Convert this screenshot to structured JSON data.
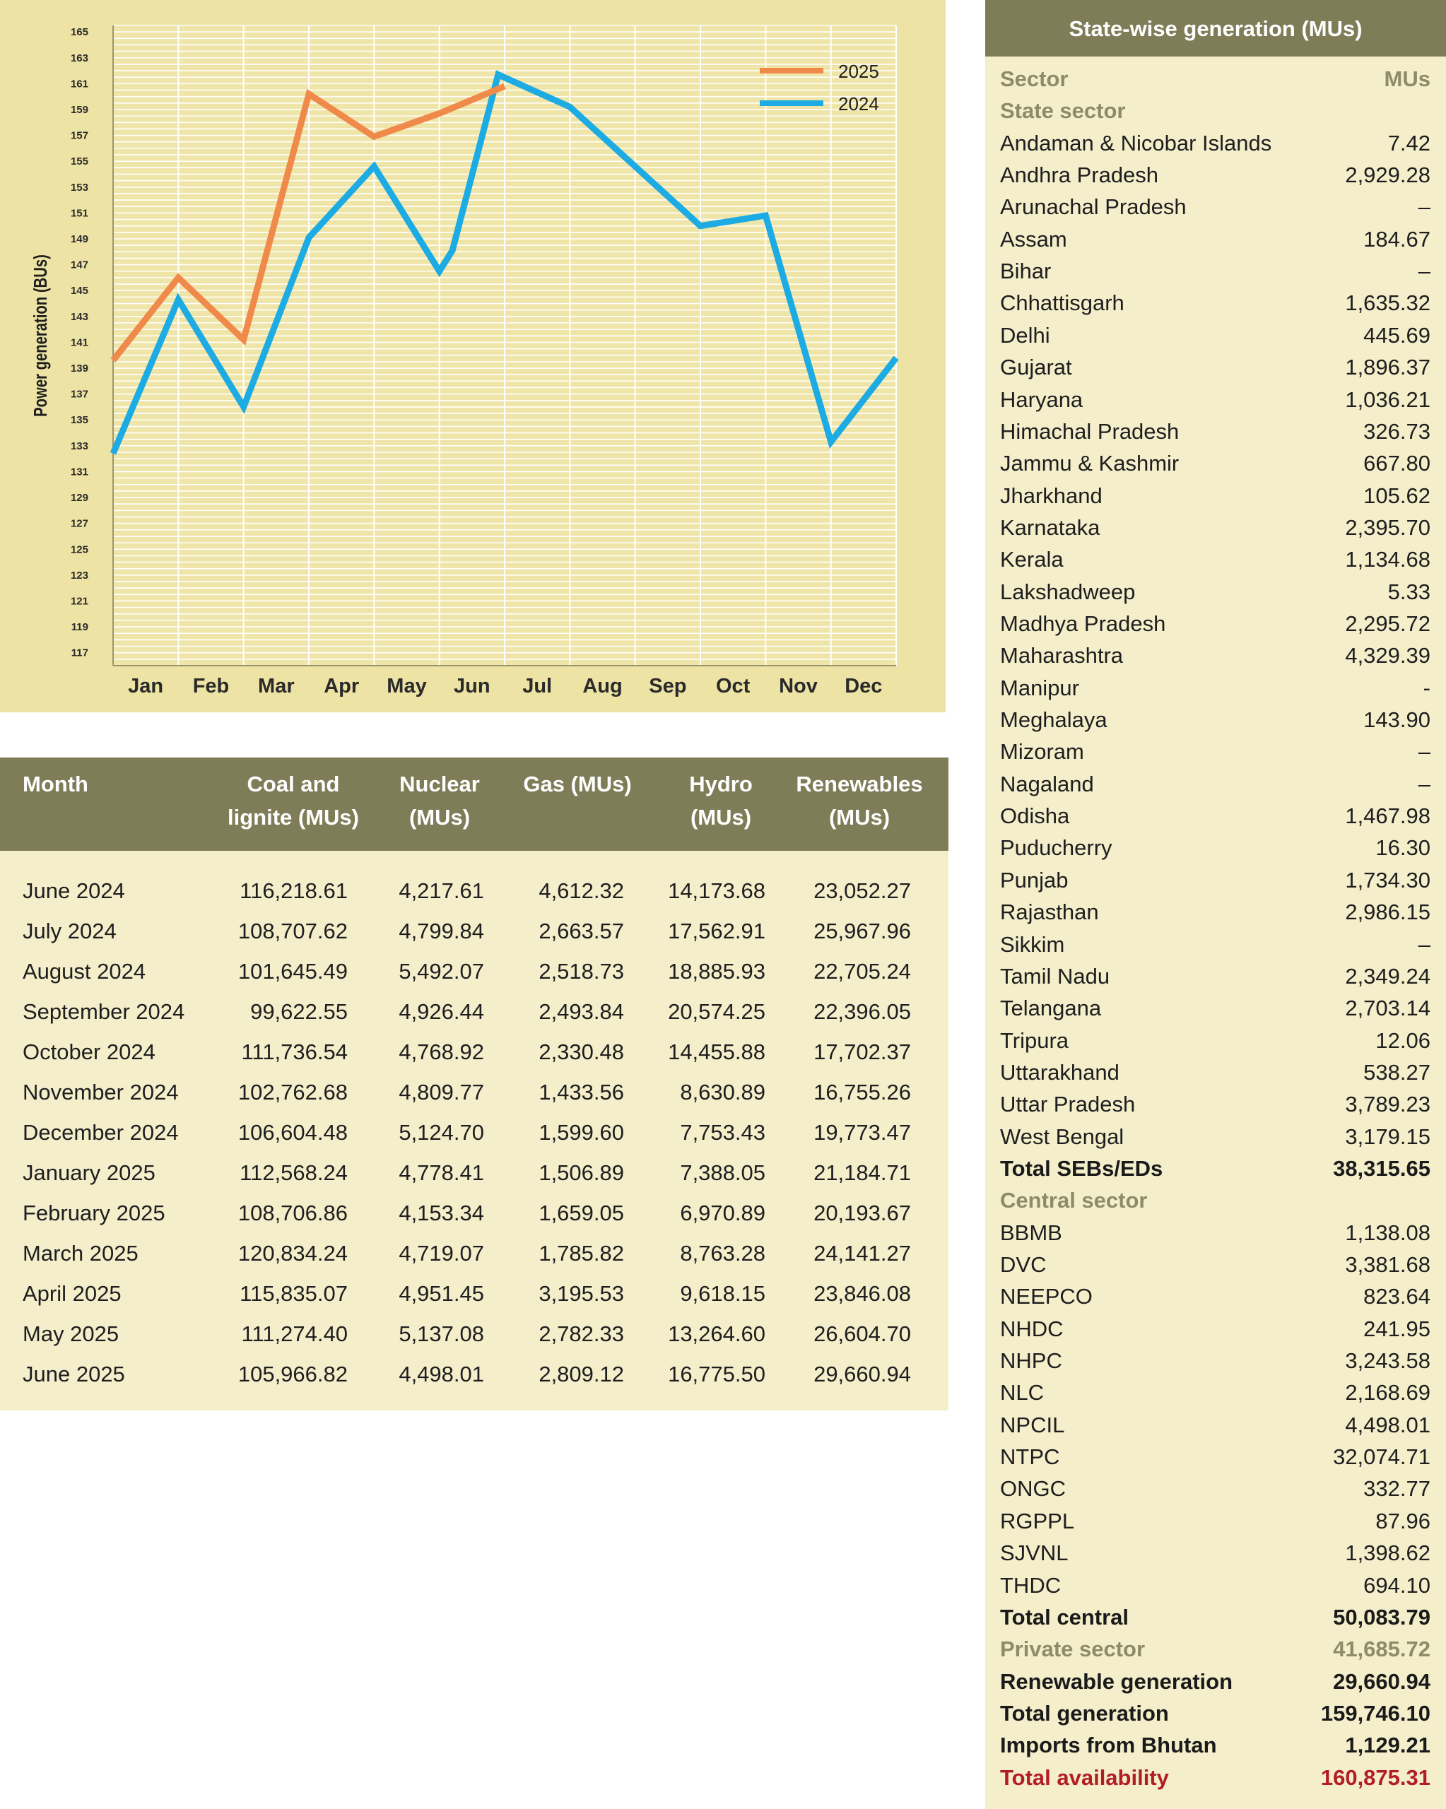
{
  "chart_data": {
    "type": "line",
    "title": "",
    "xlabel": "",
    "ylabel": "Power generation (BUs)",
    "categories": [
      "Jan",
      "Feb",
      "Mar",
      "Apr",
      "May",
      "Jun",
      "Jul",
      "Aug",
      "Sep",
      "Oct",
      "Nov",
      "Dec"
    ],
    "yticks": [
      165,
      163,
      161,
      159,
      157,
      155,
      153,
      151,
      149,
      147,
      145,
      143,
      141,
      139,
      137,
      135,
      133,
      131,
      129,
      127,
      125,
      123,
      121,
      119,
      117
    ],
    "ylim": [
      116,
      165.5
    ],
    "grid": true,
    "legend_position": "top-right",
    "series": [
      {
        "name": "2025",
        "color": "#f08a4b",
        "points": [
          [
            1,
            139.6
          ],
          [
            2,
            146.0
          ],
          [
            3,
            141.2
          ],
          [
            4,
            160.2
          ],
          [
            5,
            156.9
          ],
          [
            6,
            158.7
          ],
          [
            7,
            160.8
          ]
        ]
      },
      {
        "name": "2024",
        "color": "#1cabe2",
        "points": [
          [
            1,
            132.4
          ],
          [
            2,
            144.3
          ],
          [
            3,
            136.0
          ],
          [
            4,
            149.1
          ],
          [
            5,
            154.6
          ],
          [
            6,
            146.5
          ],
          [
            6.2,
            148.1
          ],
          [
            6.9,
            161.7
          ],
          [
            8,
            159.2
          ],
          [
            10,
            150.0
          ],
          [
            11,
            150.8
          ],
          [
            12,
            133.3
          ],
          [
            13,
            139.8
          ]
        ]
      }
    ]
  },
  "monthly_table": {
    "headers": [
      [
        "Month",
        ""
      ],
      [
        "Coal and",
        "lignite (MUs)"
      ],
      [
        "Nuclear",
        "(MUs)"
      ],
      [
        "Gas (MUs)",
        ""
      ],
      [
        "Hydro",
        "(MUs)"
      ],
      [
        "Renewables",
        "(MUs)"
      ]
    ],
    "rows": [
      [
        "June 2024",
        "116,218.61",
        "4,217.61",
        "4,612.32",
        "14,173.68",
        "23,052.27"
      ],
      [
        "July 2024",
        "108,707.62",
        "4,799.84",
        "2,663.57",
        "17,562.91",
        "25,967.96"
      ],
      [
        "August 2024",
        "101,645.49",
        "5,492.07",
        "2,518.73",
        "18,885.93",
        "22,705.24"
      ],
      [
        "September 2024",
        "99,622.55",
        "4,926.44",
        "2,493.84",
        "20,574.25",
        "22,396.05"
      ],
      [
        "October 2024",
        "111,736.54",
        "4,768.92",
        "2,330.48",
        "14,455.88",
        "17,702.37"
      ],
      [
        "November 2024",
        "102,762.68",
        "4,809.77",
        "1,433.56",
        "8,630.89",
        "16,755.26"
      ],
      [
        "December 2024",
        "106,604.48",
        "5,124.70",
        "1,599.60",
        "7,753.43",
        "19,773.47"
      ],
      [
        "January 2025",
        "112,568.24",
        "4,778.41",
        "1,506.89",
        "7,388.05",
        "21,184.71"
      ],
      [
        "February 2025",
        "108,706.86",
        "4,153.34",
        "1,659.05",
        "6,970.89",
        "20,193.67"
      ],
      [
        "March 2025",
        "120,834.24",
        "4,719.07",
        "1,785.82",
        "8,763.28",
        "24,141.27"
      ],
      [
        "April 2025",
        "115,835.07",
        "4,951.45",
        "3,195.53",
        "9,618.15",
        "23,846.08"
      ],
      [
        "May 2025",
        "111,274.40",
        "5,137.08",
        "2,782.33",
        "13,264.60",
        "26,604.70"
      ],
      [
        "June 2025",
        "105,966.82",
        "4,498.01",
        "2,809.12",
        "16,775.50",
        "29,660.94"
      ]
    ]
  },
  "state_table": {
    "title": "State-wise generation (MUs)",
    "rows": [
      {
        "name": "Sector",
        "value": "MUs",
        "style": "header"
      },
      {
        "name": "State sector",
        "value": "",
        "style": "section"
      },
      {
        "name": "Andaman & Nicobar Islands",
        "value": "7.42",
        "style": ""
      },
      {
        "name": "Andhra Pradesh",
        "value": "2,929.28",
        "style": ""
      },
      {
        "name": "Arunachal Pradesh",
        "value": "–",
        "style": ""
      },
      {
        "name": "Assam",
        "value": "184.67",
        "style": ""
      },
      {
        "name": "Bihar",
        "value": "–",
        "style": ""
      },
      {
        "name": "Chhattisgarh",
        "value": "1,635.32",
        "style": ""
      },
      {
        "name": "Delhi",
        "value": "445.69",
        "style": ""
      },
      {
        "name": "Gujarat",
        "value": "1,896.37",
        "style": ""
      },
      {
        "name": "Haryana",
        "value": "1,036.21",
        "style": ""
      },
      {
        "name": "Himachal Pradesh",
        "value": "326.73",
        "style": ""
      },
      {
        "name": "Jammu & Kashmir",
        "value": "667.80",
        "style": ""
      },
      {
        "name": "Jharkhand",
        "value": "105.62",
        "style": ""
      },
      {
        "name": "Karnataka",
        "value": "2,395.70",
        "style": ""
      },
      {
        "name": "Kerala",
        "value": "1,134.68",
        "style": ""
      },
      {
        "name": "Lakshadweep",
        "value": "5.33",
        "style": ""
      },
      {
        "name": "Madhya Pradesh",
        "value": "2,295.72",
        "style": ""
      },
      {
        "name": "Maharashtra",
        "value": "4,329.39",
        "style": ""
      },
      {
        "name": "Manipur",
        "value": "-",
        "style": ""
      },
      {
        "name": "Meghalaya",
        "value": "143.90",
        "style": ""
      },
      {
        "name": "Mizoram",
        "value": "–",
        "style": ""
      },
      {
        "name": "Nagaland",
        "value": "–",
        "style": ""
      },
      {
        "name": "Odisha",
        "value": "1,467.98",
        "style": ""
      },
      {
        "name": "Puducherry",
        "value": "16.30",
        "style": ""
      },
      {
        "name": "Punjab",
        "value": "1,734.30",
        "style": ""
      },
      {
        "name": "Rajasthan",
        "value": "2,986.15",
        "style": ""
      },
      {
        "name": "Sikkim",
        "value": "–",
        "style": ""
      },
      {
        "name": "Tamil Nadu",
        "value": "2,349.24",
        "style": ""
      },
      {
        "name": "Telangana",
        "value": "2,703.14",
        "style": ""
      },
      {
        "name": "Tripura",
        "value": "12.06",
        "style": ""
      },
      {
        "name": "Uttarakhand",
        "value": "538.27",
        "style": ""
      },
      {
        "name": "Uttar Pradesh",
        "value": "3,789.23",
        "style": ""
      },
      {
        "name": "West Bengal",
        "value": "3,179.15",
        "style": ""
      },
      {
        "name": "Total SEBs/EDs",
        "value": "38,315.65",
        "style": "total"
      },
      {
        "name": "Central sector",
        "value": "",
        "style": "section"
      },
      {
        "name": "BBMB",
        "value": "1,138.08",
        "style": ""
      },
      {
        "name": "DVC",
        "value": "3,381.68",
        "style": ""
      },
      {
        "name": "NEEPCO",
        "value": "823.64",
        "style": ""
      },
      {
        "name": "NHDC",
        "value": "241.95",
        "style": ""
      },
      {
        "name": "NHPC",
        "value": "3,243.58",
        "style": ""
      },
      {
        "name": "NLC",
        "value": "2,168.69",
        "style": ""
      },
      {
        "name": "NPCIL",
        "value": "4,498.01",
        "style": ""
      },
      {
        "name": "NTPC",
        "value": "32,074.71",
        "style": ""
      },
      {
        "name": "ONGC",
        "value": "332.77",
        "style": ""
      },
      {
        "name": "RGPPL",
        "value": "87.96",
        "style": ""
      },
      {
        "name": "SJVNL",
        "value": "1,398.62",
        "style": ""
      },
      {
        "name": "THDC",
        "value": "694.10",
        "style": ""
      },
      {
        "name": "Total central",
        "value": "50,083.79",
        "style": "total"
      },
      {
        "name": "Private sector",
        "value": "41,685.72",
        "style": "muted"
      },
      {
        "name": "Renewable generation",
        "value": "29,660.94",
        "style": "total"
      },
      {
        "name": "Total generation",
        "value": "159,746.10",
        "style": "total"
      },
      {
        "name": "Imports from Bhutan",
        "value": "1,129.21",
        "style": "total"
      },
      {
        "name": "Total availability",
        "value": "160,875.31",
        "style": "red"
      }
    ]
  }
}
